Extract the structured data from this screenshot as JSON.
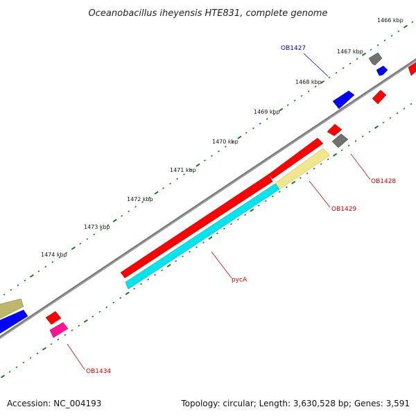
{
  "header": {
    "title": "Oceanobacillus iheyensis HTE831, complete genome"
  },
  "footer": {
    "accession": "Accession: NC_004193",
    "summary": "Topology: circular; Length: 3,630,528 bp; Genes: 3,591"
  },
  "map": {
    "tick_labels": [
      "1466 kbp",
      "1467 kbp",
      "1468 kbp",
      "1469 kbp",
      "1470 kbp",
      "1471 kbp",
      "1472 kbp",
      "1473 kbp",
      "1474 kbp"
    ],
    "gene_labels": [
      {
        "name": "OB1427",
        "color": "#0000cc"
      },
      {
        "name": "OB1428",
        "color": "#cc0000"
      },
      {
        "name": "OB1429",
        "color": "#cc0000"
      },
      {
        "name": "pycA",
        "color": "#cc0000"
      },
      {
        "name": "OB1434",
        "color": "#cc0000"
      }
    ],
    "colors": {
      "backbone": "#808080",
      "tick": "#1a7a1a",
      "red": "#ff0000",
      "blue": "#0000ff",
      "cyan": "#00e5ee",
      "khaki": "#f0e68c",
      "olive": "#bdb76b",
      "gray": "#707070",
      "pink": "#ff1493"
    }
  }
}
